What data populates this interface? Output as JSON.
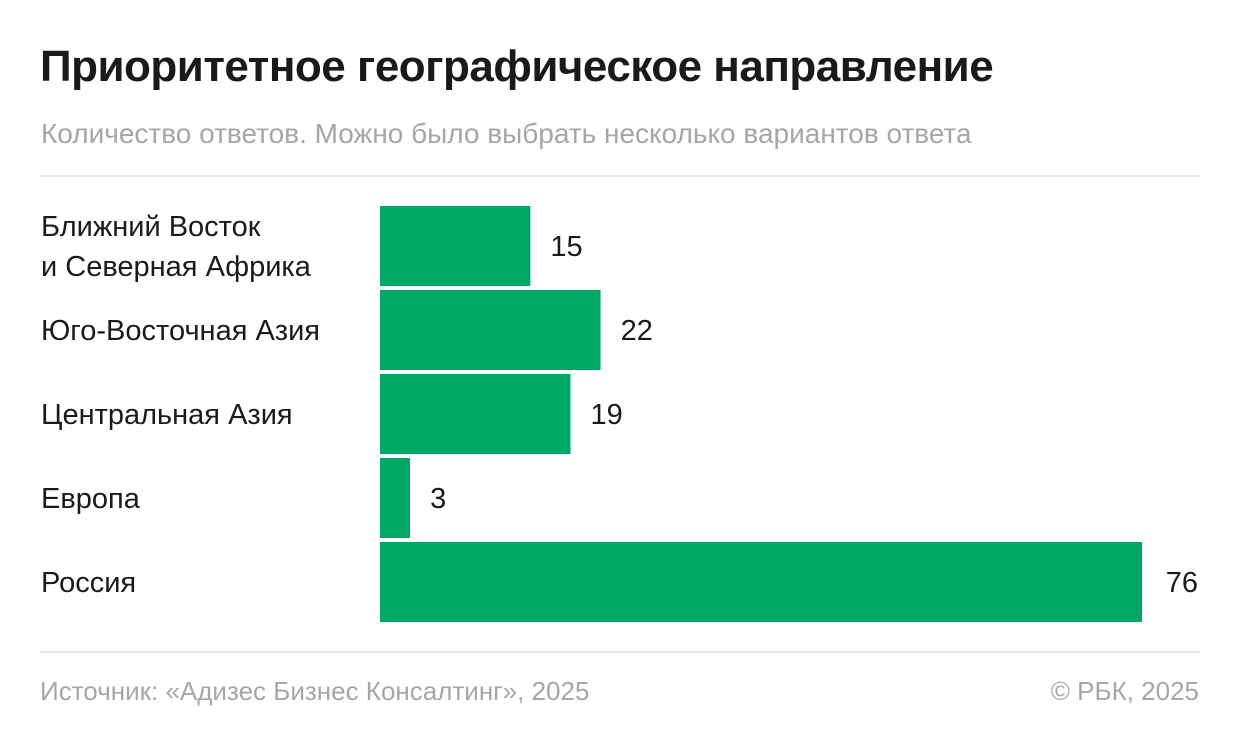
{
  "header": {
    "title": "Приоритетное географическое направление",
    "subtitle": "Количество ответов. Можно было выбрать несколько вариантов ответа"
  },
  "footer": {
    "source": "Источник: «Адизес Бизнес Консалтинг», 2025",
    "copyright": "© РБК, 2025"
  },
  "colors": {
    "bar": "#00a866",
    "text": "#1a1a1a",
    "muted": "#a6a6a6"
  },
  "chart_data": {
    "type": "bar",
    "orientation": "horizontal",
    "categories": [
      [
        "Ближний Восток",
        "и Северная Африка"
      ],
      [
        "Юго-Восточная Азия"
      ],
      [
        "Центральная Азия"
      ],
      [
        "Европа"
      ],
      [
        "Россия"
      ]
    ],
    "values": [
      15,
      22,
      19,
      3,
      76
    ],
    "data_labels": [
      "15",
      "22",
      "19",
      "3",
      "76"
    ],
    "xlim": [
      0,
      76
    ],
    "grid": false,
    "legend": "none"
  }
}
